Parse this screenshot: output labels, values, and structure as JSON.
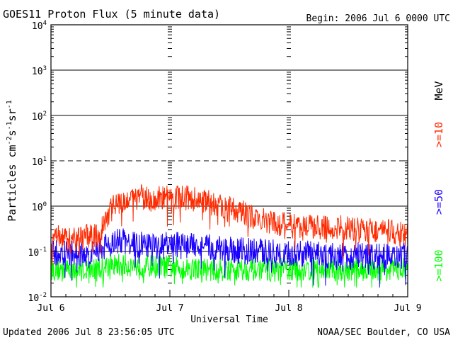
{
  "header": {
    "title": "GOES11 Proton Flux (5 minute data)",
    "begin": "Begin: 2006 Jul 6 0000 UTC"
  },
  "footer": {
    "updated": "Updated 2006 Jul  8 23:56:05 UTC",
    "credit": "NOAA/SEC Boulder, CO USA"
  },
  "colors": {
    "p10": "#ff2a00",
    "p50": "#1a00ff",
    "p100": "#00ff00",
    "frame": "#000000"
  },
  "chart_data": {
    "type": "line",
    "title": "GOES11 Proton Flux (5 minute data)",
    "xlabel": "Universal Time",
    "ylabel_parts": [
      "Particles cm",
      "-2",
      "s",
      "-1",
      "sr",
      "-1"
    ],
    "yscale": "log",
    "ylim": [
      0.01,
      10000
    ],
    "xlim": [
      0,
      72
    ],
    "x_unit": "hours since 2006 Jul 6 0000 UTC",
    "x_ticks": [
      {
        "hour": 0,
        "label": "Jul 6"
      },
      {
        "hour": 24,
        "label": "Jul 7"
      },
      {
        "hour": 48,
        "label": "Jul 8"
      },
      {
        "hour": 72,
        "label": "Jul 9"
      }
    ],
    "y_ticks": [
      {
        "exp": -2,
        "base": "10",
        "sup": "-2"
      },
      {
        "exp": -1,
        "base": "10",
        "sup": "-1"
      },
      {
        "exp": 0,
        "base": "10",
        "sup": "0"
      },
      {
        "exp": 1,
        "base": "10",
        "sup": "1"
      },
      {
        "exp": 2,
        "base": "10",
        "sup": "2"
      },
      {
        "exp": 3,
        "base": "10",
        "sup": "3"
      },
      {
        "exp": 4,
        "base": "10",
        "sup": "4"
      }
    ],
    "solid_gridlines": [
      -1,
      0,
      2,
      3
    ],
    "dashed_gridlines": [
      1
    ],
    "legend_unit": "MeV",
    "series": [
      {
        "name": ">=10",
        "color_key": "p10",
        "hours": [
          0,
          2,
          4,
          6,
          8,
          10,
          11,
          12,
          13,
          14,
          16,
          18,
          20,
          22,
          24,
          26,
          28,
          30,
          32,
          34,
          36,
          38,
          40,
          42,
          44,
          46,
          48,
          50,
          52,
          54,
          56,
          58,
          60,
          62,
          64,
          66,
          68,
          70,
          72
        ],
        "values": [
          0.2,
          0.2,
          0.17,
          0.2,
          0.22,
          0.25,
          0.5,
          0.9,
          1.1,
          1.3,
          1.5,
          1.6,
          1.4,
          1.5,
          1.6,
          1.6,
          1.5,
          1.4,
          1.2,
          1.0,
          0.9,
          0.8,
          0.6,
          0.5,
          0.45,
          0.4,
          0.4,
          0.38,
          0.35,
          0.35,
          0.32,
          0.35,
          0.33,
          0.3,
          0.3,
          0.28,
          0.28,
          0.25,
          0.22
        ]
      },
      {
        "name": ">=50",
        "color_key": "p50",
        "hours": [
          0,
          4,
          8,
          10,
          12,
          14,
          16,
          18,
          20,
          22,
          24,
          28,
          32,
          36,
          40,
          44,
          48,
          52,
          56,
          60,
          64,
          68,
          72
        ],
        "values": [
          0.09,
          0.09,
          0.08,
          0.12,
          0.15,
          0.17,
          0.15,
          0.14,
          0.13,
          0.13,
          0.14,
          0.13,
          0.12,
          0.11,
          0.1,
          0.1,
          0.09,
          0.09,
          0.08,
          0.08,
          0.08,
          0.08,
          0.08
        ]
      },
      {
        "name": ">=100",
        "color_key": "p100",
        "hours": [
          0,
          8,
          12,
          16,
          24,
          32,
          40,
          48,
          56,
          64,
          72
        ],
        "values": [
          0.04,
          0.04,
          0.05,
          0.05,
          0.045,
          0.04,
          0.04,
          0.04,
          0.04,
          0.04,
          0.04
        ]
      }
    ]
  }
}
